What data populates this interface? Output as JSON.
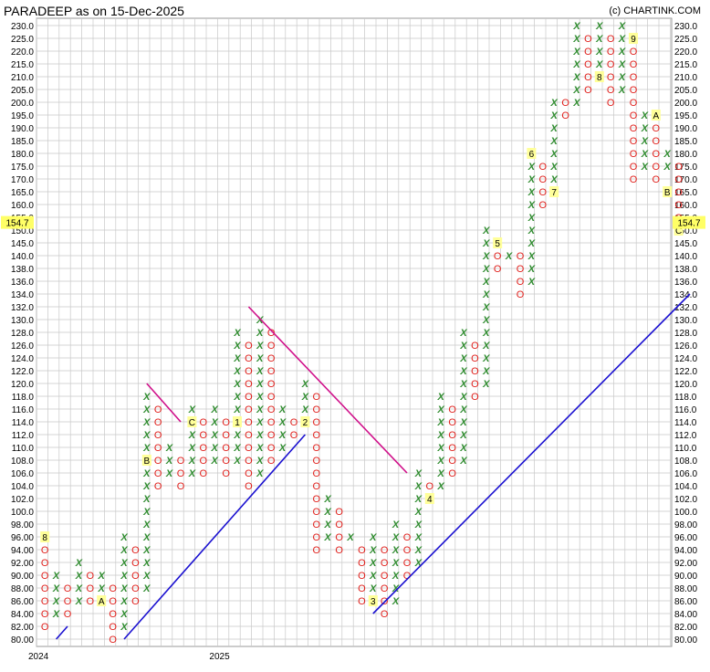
{
  "title": "PARADEEP as on 15-Dec-2025",
  "credit": "(c) CHARTINK.COM",
  "colors": {
    "x": "#2e8b2e",
    "o": "#e0201c",
    "trend_up": "#1a10d0",
    "trend_down": "#d0108a",
    "grid": "#c8c8c8",
    "marker_bg": "#ffff99",
    "last_price_bg": "#ffff66"
  },
  "chart_data": {
    "type": "point-and-figure",
    "title": "PARADEEP as on 15-Dec-2025",
    "ylim": [
      80,
      230
    ],
    "y_ticks": [
      "230.0",
      "225.0",
      "220.0",
      "215.0",
      "210.0",
      "205.0",
      "200.0",
      "195.0",
      "190.0",
      "185.0",
      "180.0",
      "175.0",
      "170.0",
      "165.0",
      "160.0",
      "155.0",
      "150.0",
      "145.0",
      "140.0",
      "138.0",
      "136.0",
      "134.0",
      "132.0",
      "130.0",
      "128.0",
      "126.0",
      "124.0",
      "122.0",
      "120.0",
      "118.0",
      "116.0",
      "114.0",
      "112.0",
      "110.0",
      "108.0",
      "106.0",
      "104.0",
      "102.0",
      "100.0",
      "98.00",
      "96.00",
      "94.00",
      "92.00",
      "90.00",
      "88.00",
      "86.00",
      "84.00",
      "82.00",
      "80.00"
    ],
    "last_price": "154.7",
    "x_labels": [
      {
        "label": "2024",
        "column": 0
      },
      {
        "label": "2025",
        "column": 16
      }
    ],
    "columns": [
      {
        "type": "O",
        "from": "96.00",
        "to": "82.00",
        "markers": [
          {
            "at": "96.00",
            "label": "8"
          }
        ]
      },
      {
        "type": "X",
        "from": "84.00",
        "to": "90.00"
      },
      {
        "type": "O",
        "from": "88.00",
        "to": "84.00"
      },
      {
        "type": "X",
        "from": "86.00",
        "to": "92.00"
      },
      {
        "type": "O",
        "from": "90.00",
        "to": "86.00"
      },
      {
        "type": "X",
        "from": "88.00",
        "to": "90.00",
        "markers": [
          {
            "at": "86.00",
            "label": "A"
          }
        ]
      },
      {
        "type": "O",
        "from": "88.00",
        "to": "80.00"
      },
      {
        "type": "X",
        "from": "82.00",
        "to": "96.00"
      },
      {
        "type": "O",
        "from": "94.00",
        "to": "86.00"
      },
      {
        "type": "X",
        "from": "88.00",
        "to": "118.00",
        "markers": [
          {
            "at": "108.0",
            "label": "B"
          }
        ]
      },
      {
        "type": "O",
        "from": "116.0",
        "to": "104.0"
      },
      {
        "type": "X",
        "from": "106.0",
        "to": "110.0"
      },
      {
        "type": "O",
        "from": "108.0",
        "to": "104.0"
      },
      {
        "type": "X",
        "from": "106.0",
        "to": "116.0",
        "markers": [
          {
            "at": "114.0",
            "label": "C"
          }
        ]
      },
      {
        "type": "O",
        "from": "114.0",
        "to": "106.0"
      },
      {
        "type": "X",
        "from": "108.0",
        "to": "116.0"
      },
      {
        "type": "O",
        "from": "114.0",
        "to": "106.0"
      },
      {
        "type": "X",
        "from": "108.0",
        "to": "128.0",
        "markers": [
          {
            "at": "114.0",
            "label": "1"
          }
        ]
      },
      {
        "type": "O",
        "from": "126.0",
        "to": "104.0"
      },
      {
        "type": "X",
        "from": "106.0",
        "to": "130.0"
      },
      {
        "type": "O",
        "from": "128.0",
        "to": "108.0"
      },
      {
        "type": "X",
        "from": "110.0",
        "to": "116.0"
      },
      {
        "type": "O",
        "from": "114.0",
        "to": "112.0"
      },
      {
        "type": "X",
        "from": "114.0",
        "to": "120.0",
        "markers": [
          {
            "at": "114.0",
            "label": "2"
          }
        ]
      },
      {
        "type": "O",
        "from": "118.0",
        "to": "94.00"
      },
      {
        "type": "X",
        "from": "96.00",
        "to": "102.0"
      },
      {
        "type": "O",
        "from": "100.0",
        "to": "94.00"
      },
      {
        "type": "X",
        "from": "96.00",
        "to": "96.00"
      },
      {
        "type": "O",
        "from": "94.00",
        "to": "86.00"
      },
      {
        "type": "X",
        "from": "88.00",
        "to": "96.00",
        "markers": [
          {
            "at": "86.00",
            "label": "3"
          }
        ]
      },
      {
        "type": "O",
        "from": "94.00",
        "to": "84.00"
      },
      {
        "type": "X",
        "from": "86.00",
        "to": "98.00"
      },
      {
        "type": "O",
        "from": "96.00",
        "to": "90.00"
      },
      {
        "type": "X",
        "from": "92.00",
        "to": "106.0"
      },
      {
        "type": "O",
        "from": "104.0",
        "to": "102.0",
        "markers": [
          {
            "at": "102.0",
            "label": "4"
          }
        ]
      },
      {
        "type": "X",
        "from": "104.0",
        "to": "118.0"
      },
      {
        "type": "O",
        "from": "116.0",
        "to": "106.0"
      },
      {
        "type": "X",
        "from": "108.0",
        "to": "128.0"
      },
      {
        "type": "O",
        "from": "126.0",
        "to": "118.0"
      },
      {
        "type": "X",
        "from": "120.0",
        "to": "150.0"
      },
      {
        "type": "O",
        "from": "145.0",
        "to": "138.0",
        "markers": [
          {
            "at": "145.0",
            "label": "5"
          }
        ]
      },
      {
        "type": "X",
        "from": "140.0",
        "to": "140.0"
      },
      {
        "type": "O",
        "from": "140.0",
        "to": "134.0"
      },
      {
        "type": "X",
        "from": "136.0",
        "to": "175.0",
        "markers": [
          {
            "at": "180.0",
            "label": "6"
          }
        ]
      },
      {
        "type": "O",
        "from": "175.0",
        "to": "160.0"
      },
      {
        "type": "X",
        "from": "165.0",
        "to": "200.0",
        "markers": [
          {
            "at": "165.0",
            "label": "7"
          }
        ]
      },
      {
        "type": "O",
        "from": "200.0",
        "to": "195.0"
      },
      {
        "type": "X",
        "from": "200.0",
        "to": "230.0"
      },
      {
        "type": "O",
        "from": "225.0",
        "to": "205.0"
      },
      {
        "type": "X",
        "from": "210.0",
        "to": "230.0",
        "markers": [
          {
            "at": "210.0",
            "label": "8"
          }
        ]
      },
      {
        "type": "O",
        "from": "225.0",
        "to": "200.0"
      },
      {
        "type": "X",
        "from": "205.0",
        "to": "230.0"
      },
      {
        "type": "O",
        "from": "225.0",
        "to": "170.0",
        "markers": [
          {
            "at": "225.0",
            "label": "9"
          }
        ]
      },
      {
        "type": "X",
        "from": "175.0",
        "to": "195.0"
      },
      {
        "type": "O",
        "from": "190.0",
        "to": "170.0",
        "markers": [
          {
            "at": "195.0",
            "label": "A"
          }
        ]
      },
      {
        "type": "X",
        "from": "175.0",
        "to": "180.0",
        "markers": [
          {
            "at": "165.0",
            "label": "B"
          }
        ]
      },
      {
        "type": "O",
        "from": "175.0",
        "to": "155.0",
        "markers": [
          {
            "at": "150.0",
            "label": "C"
          }
        ]
      }
    ],
    "trendlines": [
      {
        "kind": "support",
        "from": {
          "column": 1,
          "value": "80.00"
        },
        "to": {
          "column": 2,
          "value": "82.00"
        }
      },
      {
        "kind": "support",
        "from": {
          "column": 7,
          "value": "80.00"
        },
        "to": {
          "column": 23,
          "value": "112.0"
        }
      },
      {
        "kind": "resistance",
        "from": {
          "column": 9,
          "value": "120.0"
        },
        "to": {
          "column": 12,
          "value": "114.0"
        }
      },
      {
        "kind": "resistance",
        "from": {
          "column": 18,
          "value": "132.0"
        },
        "to": {
          "column": 32,
          "value": "106.0"
        }
      },
      {
        "kind": "support",
        "from": {
          "column": 29,
          "value": "84.00"
        },
        "to": {
          "column": 57,
          "value": "134.0"
        }
      }
    ]
  }
}
